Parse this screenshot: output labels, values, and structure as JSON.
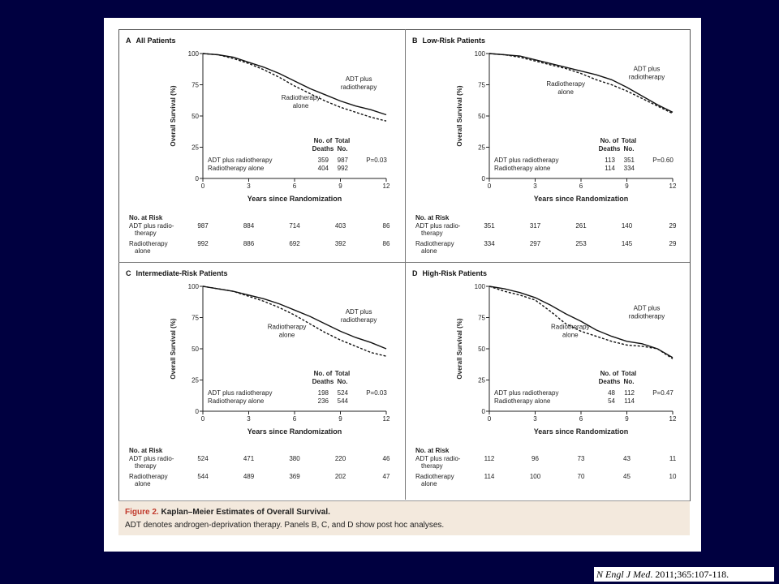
{
  "caption": {
    "figure_label": "Figure 2.",
    "title": "Kaplan–Meier Estimates of Overall Survival.",
    "text": "ADT denotes androgen-deprivation therapy. Panels B, C, and D show post hoc analyses."
  },
  "citation": {
    "journal": "N Engl J Med",
    "rest": ". 2011;365:107-118."
  },
  "chart_data": [
    {
      "type": "line",
      "panel": "A",
      "title": "All Patients",
      "xlabel": "Years since Randomization",
      "ylabel": "Overall Survival (%)",
      "xlim": [
        0,
        12
      ],
      "ylim": [
        0,
        100
      ],
      "xticks": [
        "0",
        "3",
        "6",
        "9",
        "12"
      ],
      "yticks": [
        "0",
        "25",
        "50",
        "75",
        "100"
      ],
      "series": [
        {
          "name": "ADT plus radiotherapy",
          "style": "solid",
          "x": [
            0,
            1,
            2,
            3,
            4,
            5,
            6,
            7,
            8,
            9,
            10,
            11,
            12
          ],
          "y": [
            100,
            99,
            97,
            93,
            89,
            84,
            78,
            72,
            67,
            62,
            58,
            55,
            51
          ]
        },
        {
          "name": "Radiotherapy alone",
          "style": "dashed",
          "x": [
            0,
            1,
            2,
            3,
            4,
            5,
            6,
            7,
            8,
            9,
            10,
            11,
            12
          ],
          "y": [
            100,
            99,
            96,
            92,
            87,
            81,
            74,
            68,
            62,
            57,
            53,
            49,
            46
          ]
        }
      ],
      "curve_labels": [
        {
          "text": [
            "ADT plus",
            "radiotherapy"
          ],
          "x": 10.2,
          "y": 78
        },
        {
          "text": [
            "Radiotherapy",
            "alone"
          ],
          "x": 6.4,
          "y": 63
        }
      ],
      "table": {
        "headers": [
          [
            "No. of",
            "Deaths"
          ],
          [
            "Total",
            "No."
          ]
        ],
        "rows": [
          {
            "label": "ADT plus radiotherapy",
            "deaths": "359",
            "total": "987",
            "p": "P=0.03"
          },
          {
            "label": "Radiotherapy alone",
            "deaths": "404",
            "total": "992",
            "p": ""
          }
        ]
      },
      "at_risk": {
        "heading": "No. at Risk",
        "rows": [
          {
            "label": [
              "ADT plus radio-",
              "therapy"
            ],
            "values": [
              "987",
              "884",
              "714",
              "403",
              "86"
            ]
          },
          {
            "label": [
              "Radiotherapy",
              "alone"
            ],
            "values": [
              "992",
              "886",
              "692",
              "392",
              "86"
            ]
          }
        ]
      }
    },
    {
      "type": "line",
      "panel": "B",
      "title": "Low-Risk Patients",
      "xlabel": "Years since Randomization",
      "ylabel": "Overall Survival (%)",
      "xlim": [
        0,
        12
      ],
      "ylim": [
        0,
        100
      ],
      "xticks": [
        "0",
        "3",
        "6",
        "9",
        "12"
      ],
      "yticks": [
        "0",
        "25",
        "50",
        "75",
        "100"
      ],
      "series": [
        {
          "name": "ADT plus radiotherapy",
          "style": "solid",
          "x": [
            0,
            1,
            2,
            3,
            4,
            5,
            6,
            7,
            8,
            9,
            10,
            11,
            12
          ],
          "y": [
            100,
            99,
            98,
            95,
            92,
            89,
            86,
            83,
            79,
            73,
            66,
            59,
            53
          ]
        },
        {
          "name": "Radiotherapy alone",
          "style": "dashed",
          "x": [
            0,
            1,
            2,
            3,
            4,
            5,
            6,
            7,
            8,
            9,
            10,
            11,
            12
          ],
          "y": [
            100,
            99,
            97,
            94,
            91,
            88,
            84,
            79,
            75,
            70,
            64,
            58,
            52
          ]
        }
      ],
      "curve_labels": [
        {
          "text": [
            "ADT plus",
            "radiotherapy"
          ],
          "x": 10.3,
          "y": 86
        },
        {
          "text": [
            "Radiotherapy",
            "alone"
          ],
          "x": 5.0,
          "y": 74
        }
      ],
      "table": {
        "headers": [
          [
            "No. of",
            "Deaths"
          ],
          [
            "Total",
            "No."
          ]
        ],
        "rows": [
          {
            "label": "ADT plus radiotherapy",
            "deaths": "113",
            "total": "351",
            "p": "P=0.60"
          },
          {
            "label": "Radiotherapy alone",
            "deaths": "114",
            "total": "334",
            "p": ""
          }
        ]
      },
      "at_risk": {
        "heading": "No. at Risk",
        "rows": [
          {
            "label": [
              "ADT plus radio-",
              "therapy"
            ],
            "values": [
              "351",
              "317",
              "261",
              "140",
              "29"
            ]
          },
          {
            "label": [
              "Radiotherapy",
              "alone"
            ],
            "values": [
              "334",
              "297",
              "253",
              "145",
              "29"
            ]
          }
        ]
      }
    },
    {
      "type": "line",
      "panel": "C",
      "title": "Intermediate-Risk Patients",
      "xlabel": "Years since Randomization",
      "ylabel": "Overall Survival (%)",
      "xlim": [
        0,
        12
      ],
      "ylim": [
        0,
        100
      ],
      "xticks": [
        "0",
        "3",
        "6",
        "9",
        "12"
      ],
      "yticks": [
        "0",
        "25",
        "50",
        "75",
        "100"
      ],
      "series": [
        {
          "name": "ADT plus radiotherapy",
          "style": "solid",
          "x": [
            0,
            1,
            2,
            3,
            4,
            5,
            6,
            7,
            8,
            9,
            10,
            11,
            12
          ],
          "y": [
            100,
            98,
            96,
            93,
            90,
            86,
            81,
            76,
            70,
            64,
            59,
            55,
            50
          ]
        },
        {
          "name": "Radiotherapy alone",
          "style": "dashed",
          "x": [
            0,
            1,
            2,
            3,
            4,
            5,
            6,
            7,
            8,
            9,
            10,
            11,
            12
          ],
          "y": [
            100,
            98,
            96,
            92,
            88,
            83,
            77,
            70,
            63,
            57,
            52,
            47,
            44
          ]
        }
      ],
      "curve_labels": [
        {
          "text": [
            "ADT plus",
            "radiotherapy"
          ],
          "x": 10.2,
          "y": 78
        },
        {
          "text": [
            "Radiotherapy",
            "alone"
          ],
          "x": 5.5,
          "y": 66
        }
      ],
      "table": {
        "headers": [
          [
            "No. of",
            "Deaths"
          ],
          [
            "Total",
            "No."
          ]
        ],
        "rows": [
          {
            "label": "ADT plus radiotherapy",
            "deaths": "198",
            "total": "524",
            "p": "P=0.03"
          },
          {
            "label": "Radiotherapy alone",
            "deaths": "236",
            "total": "544",
            "p": ""
          }
        ]
      },
      "at_risk": {
        "heading": "No. at Risk",
        "rows": [
          {
            "label": [
              "ADT plus radio-",
              "therapy"
            ],
            "values": [
              "524",
              "471",
              "380",
              "220",
              "46"
            ]
          },
          {
            "label": [
              "Radiotherapy",
              "alone"
            ],
            "values": [
              "544",
              "489",
              "369",
              "202",
              "47"
            ]
          }
        ]
      }
    },
    {
      "type": "line",
      "panel": "D",
      "title": "High-Risk Patients",
      "xlabel": "Years since Randomization",
      "ylabel": "Overall Survival (%)",
      "xlim": [
        0,
        12
      ],
      "ylim": [
        0,
        100
      ],
      "xticks": [
        "0",
        "3",
        "6",
        "9",
        "12"
      ],
      "yticks": [
        "0",
        "25",
        "50",
        "75",
        "100"
      ],
      "series": [
        {
          "name": "ADT plus radiotherapy",
          "style": "solid",
          "x": [
            0,
            1,
            2,
            3,
            4,
            5,
            6,
            7,
            8,
            9,
            10,
            11,
            12
          ],
          "y": [
            100,
            98,
            95,
            91,
            85,
            78,
            72,
            65,
            60,
            56,
            54,
            50,
            43
          ]
        },
        {
          "name": "Radiotherapy alone",
          "style": "dashed",
          "x": [
            0,
            1,
            2,
            3,
            4,
            5,
            6,
            7,
            8,
            9,
            10,
            11,
            12
          ],
          "y": [
            100,
            96,
            93,
            89,
            80,
            70,
            64,
            60,
            56,
            53,
            52,
            50,
            42
          ]
        }
      ],
      "curve_labels": [
        {
          "text": [
            "ADT plus",
            "radiotherapy"
          ],
          "x": 10.3,
          "y": 81
        },
        {
          "text": [
            "Radiotherapy",
            "alone"
          ],
          "x": 5.3,
          "y": 66
        }
      ],
      "table": {
        "headers": [
          [
            "No. of",
            "Deaths"
          ],
          [
            "Total",
            "No."
          ]
        ],
        "rows": [
          {
            "label": "ADT plus radiotherapy",
            "deaths": "48",
            "total": "112",
            "p": "P=0.47"
          },
          {
            "label": "Radiotherapy alone",
            "deaths": "54",
            "total": "114",
            "p": ""
          }
        ]
      },
      "at_risk": {
        "heading": "No. at Risk",
        "rows": [
          {
            "label": [
              "ADT plus radio-",
              "therapy"
            ],
            "values": [
              "112",
              "96",
              "73",
              "43",
              "11"
            ]
          },
          {
            "label": [
              "Radiotherapy",
              "alone"
            ],
            "values": [
              "114",
              "100",
              "70",
              "45",
              "10"
            ]
          }
        ]
      }
    }
  ]
}
